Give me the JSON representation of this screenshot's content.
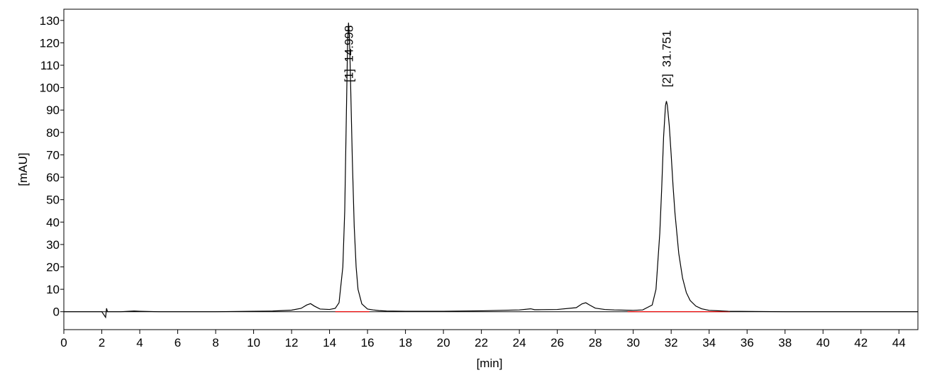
{
  "chart_data": {
    "type": "line",
    "xlabel": "[min]",
    "ylabel": "[mAU]",
    "xlim": [
      0,
      45
    ],
    "ylim": [
      -8,
      135
    ],
    "xticks": [
      0,
      2,
      4,
      6,
      8,
      10,
      12,
      14,
      16,
      18,
      20,
      22,
      24,
      26,
      28,
      30,
      32,
      34,
      36,
      38,
      40,
      42,
      44
    ],
    "yticks": [
      0,
      10,
      20,
      30,
      40,
      50,
      60,
      70,
      80,
      90,
      100,
      110,
      120,
      130
    ],
    "series": [
      {
        "color": "#000000",
        "x": [
          0,
          1,
          2,
          2.2,
          2.25,
          2.3,
          2.4,
          3,
          3.7,
          4,
          5,
          6,
          8,
          10,
          11,
          12,
          12.5,
          12.8,
          13.0,
          13.2,
          13.5,
          14,
          14.3,
          14.5,
          14.7,
          14.8,
          14.9,
          14.95,
          15.0,
          15.05,
          15.1,
          15.2,
          15.3,
          15.4,
          15.5,
          15.7,
          16,
          16.3,
          16.6,
          17,
          18,
          20,
          22,
          24,
          24.6,
          24.8,
          25,
          26,
          27,
          27.3,
          27.5,
          27.7,
          28,
          28.5,
          29,
          30,
          30.5,
          31,
          31.2,
          31.4,
          31.5,
          31.6,
          31.7,
          31.75,
          31.8,
          31.9,
          32.0,
          32.1,
          32.2,
          32.4,
          32.6,
          32.8,
          33.0,
          33.3,
          33.6,
          34,
          35,
          38,
          41,
          44,
          45
        ],
        "values": [
          0,
          0,
          0,
          -2.5,
          1.5,
          0,
          0,
          0,
          0.3,
          0.2,
          0,
          0,
          0,
          0.2,
          0.3,
          0.7,
          1.5,
          3,
          3.6,
          2.5,
          1.2,
          1,
          1.5,
          4,
          20,
          45,
          95,
          120,
          129,
          122,
          105,
          68,
          38,
          20,
          10,
          3.5,
          1.2,
          0.8,
          0.5,
          0.3,
          0.2,
          0.2,
          0.4,
          0.8,
          1.3,
          0.9,
          0.9,
          1,
          1.8,
          3.5,
          4,
          3,
          1.6,
          1,
          0.8,
          0.6,
          0.8,
          3,
          10,
          35,
          55,
          78,
          92,
          94,
          92,
          83,
          70,
          56,
          44,
          26,
          15,
          8.5,
          5,
          2.5,
          1.3,
          0.6,
          0.2,
          0,
          0,
          0,
          0
        ]
      }
    ],
    "baselines": [
      {
        "color": "#ff0000",
        "x": [
          14.3,
          16.1
        ],
        "values": [
          0,
          0
        ]
      },
      {
        "color": "#ff0000",
        "x": [
          29.7,
          35.1
        ],
        "values": [
          0,
          0
        ]
      }
    ],
    "annotations": [
      {
        "text": "[1]  14.998",
        "x": 14.998,
        "color": "#0000ff"
      },
      {
        "text": "[2]  31.751",
        "x": 31.751,
        "color": "#0000ff"
      }
    ]
  }
}
